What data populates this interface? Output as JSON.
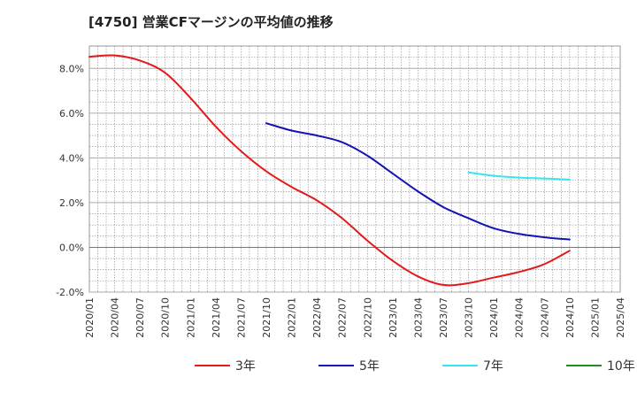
{
  "chart_data": {
    "type": "line",
    "title": "[4750]  営業CFマージンの平均値の推移",
    "xlabel": "",
    "ylabel": "",
    "x_ticks": [
      "2020/01",
      "2020/04",
      "2020/07",
      "2020/10",
      "2021/01",
      "2021/04",
      "2021/07",
      "2021/10",
      "2022/01",
      "2022/04",
      "2022/07",
      "2022/10",
      "2023/01",
      "2023/04",
      "2023/07",
      "2023/10",
      "2024/01",
      "2024/04",
      "2024/07",
      "2024/10",
      "2025/01",
      "2025/04"
    ],
    "y_ticks": [
      "-2.0%",
      "0.0%",
      "2.0%",
      "4.0%",
      "6.0%",
      "8.0%"
    ],
    "ylim": [
      -2.0,
      9.0
    ],
    "grid": true,
    "legend_position": "bottom",
    "series": [
      {
        "name": "3年",
        "color": "#e31a1c",
        "points": [
          [
            "2020/01",
            8.52
          ],
          [
            "2020/04",
            8.58
          ],
          [
            "2020/07",
            8.35
          ],
          [
            "2020/10",
            7.8
          ],
          [
            "2021/01",
            6.68
          ],
          [
            "2021/04",
            5.4
          ],
          [
            "2021/07",
            4.3
          ],
          [
            "2021/10",
            3.4
          ],
          [
            "2022/01",
            2.7
          ],
          [
            "2022/04",
            2.1
          ],
          [
            "2022/07",
            1.3
          ],
          [
            "2022/10",
            0.3
          ],
          [
            "2023/01",
            -0.6
          ],
          [
            "2023/04",
            -1.3
          ],
          [
            "2023/07",
            -1.68
          ],
          [
            "2023/10",
            -1.6
          ],
          [
            "2024/01",
            -1.35
          ],
          [
            "2024/04",
            -1.1
          ],
          [
            "2024/07",
            -0.75
          ],
          [
            "2024/10",
            -0.15
          ]
        ]
      },
      {
        "name": "5年",
        "color": "#1414b4",
        "points": [
          [
            "2021/10",
            5.55
          ],
          [
            "2022/01",
            5.22
          ],
          [
            "2022/04",
            5.0
          ],
          [
            "2022/07",
            4.7
          ],
          [
            "2022/10",
            4.1
          ],
          [
            "2023/01",
            3.3
          ],
          [
            "2023/04",
            2.5
          ],
          [
            "2023/07",
            1.8
          ],
          [
            "2023/10",
            1.3
          ],
          [
            "2024/01",
            0.85
          ],
          [
            "2024/04",
            0.6
          ],
          [
            "2024/07",
            0.45
          ],
          [
            "2024/10",
            0.35
          ]
        ]
      },
      {
        "name": "7年",
        "color": "#33e6f0",
        "points": [
          [
            "2023/10",
            3.35
          ],
          [
            "2024/01",
            3.2
          ],
          [
            "2024/04",
            3.12
          ],
          [
            "2024/07",
            3.08
          ],
          [
            "2024/10",
            3.03
          ]
        ]
      },
      {
        "name": "10年",
        "color": "#228b22",
        "points": []
      }
    ]
  }
}
